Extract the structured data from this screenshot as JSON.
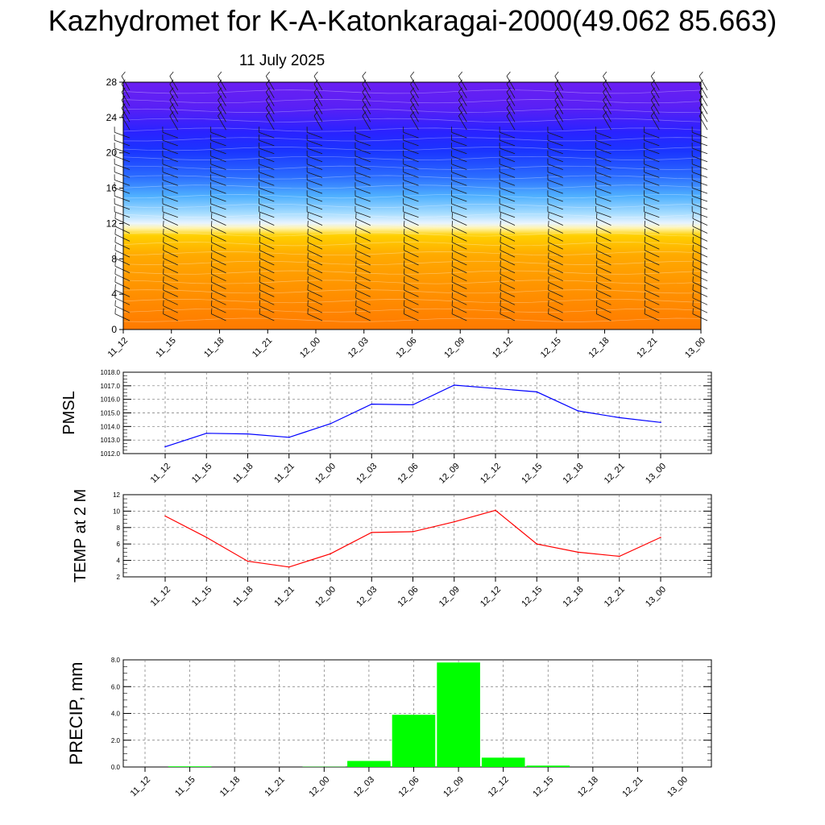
{
  "header": {
    "title": "Kazhydromet for K-A-Katonkaragai-2000(49.062 85.663)",
    "subtitle": "11 July 2025"
  },
  "colors": {
    "pmsl_line": "#0000ff",
    "temp_line": "#ff0000",
    "precip_bar": "#00ff00",
    "warm_bottom": "#ff7a00",
    "warm_mid": "#ffaa00",
    "warm_top": "#ffd400",
    "cool_light": "#e6f3ff",
    "cool_sky": "#4fb7ff",
    "cool_blue": "#1a35ff",
    "cool_top": "#6a1ff2"
  },
  "chart_data": [
    {
      "id": "cross-section",
      "type": "heatmap",
      "title": "",
      "xlabel": "",
      "ylabel": "",
      "x_ticks": [
        "11_12",
        "11_15",
        "11_18",
        "11_21",
        "12_00",
        "12_03",
        "12_06",
        "12_09",
        "12_12",
        "12_15",
        "12_18",
        "12_21",
        "13_00"
      ],
      "y_ticks": [
        0,
        4,
        8,
        12,
        16,
        20,
        24,
        28
      ],
      "ylim": [
        0,
        28
      ],
      "wind_barbs": true
    },
    {
      "id": "pmsl",
      "type": "line",
      "title": "",
      "ylabel": "PMSL",
      "categories": [
        "11_12",
        "11_15",
        "11_18",
        "11_21",
        "12_00",
        "12_03",
        "12_06",
        "12_09",
        "12_12",
        "12_15",
        "12_18",
        "12_21",
        "13_00"
      ],
      "values": [
        1012.5,
        1013.5,
        1013.45,
        1013.2,
        1014.2,
        1015.65,
        1015.6,
        1017.05,
        1016.8,
        1016.55,
        1015.15,
        1014.65,
        1014.3
      ],
      "ylim": [
        1012.0,
        1018.0
      ],
      "y_ticks": [
        "1012.0",
        "1013.0",
        "1014.0",
        "1015.0",
        "1016.0",
        "1017.0",
        "1018.0"
      ],
      "grid": true
    },
    {
      "id": "temp",
      "type": "line",
      "title": "",
      "ylabel": "TEMP at 2 M",
      "categories": [
        "11_12",
        "11_15",
        "11_18",
        "11_21",
        "12_00",
        "12_03",
        "12_06",
        "12_09",
        "12_12",
        "12_15",
        "12_18",
        "12_21",
        "13_00"
      ],
      "values": [
        9.4,
        6.8,
        3.9,
        3.2,
        4.8,
        7.4,
        7.5,
        8.7,
        10.1,
        6.0,
        5.0,
        4.5,
        6.8
      ],
      "ylim": [
        2,
        12
      ],
      "y_ticks": [
        "2",
        "4",
        "6",
        "8",
        "10",
        "12"
      ],
      "grid": true
    },
    {
      "id": "precip",
      "type": "bar",
      "title": "",
      "ylabel": "PRECIP, mm",
      "categories": [
        "11_12",
        "11_15",
        "11_18",
        "11_21",
        "12_00",
        "12_03",
        "12_06",
        "12_09",
        "12_12",
        "12_15",
        "12_18",
        "12_21",
        "13_00"
      ],
      "values": [
        0.0,
        0.05,
        0.0,
        0.0,
        0.02,
        0.45,
        3.9,
        7.8,
        0.7,
        0.1,
        0.0,
        0.0,
        0.0
      ],
      "ylim": [
        0.0,
        8.0
      ],
      "y_ticks": [
        "0.0",
        "2.0",
        "4.0",
        "6.0",
        "8.0"
      ],
      "grid": true
    }
  ]
}
